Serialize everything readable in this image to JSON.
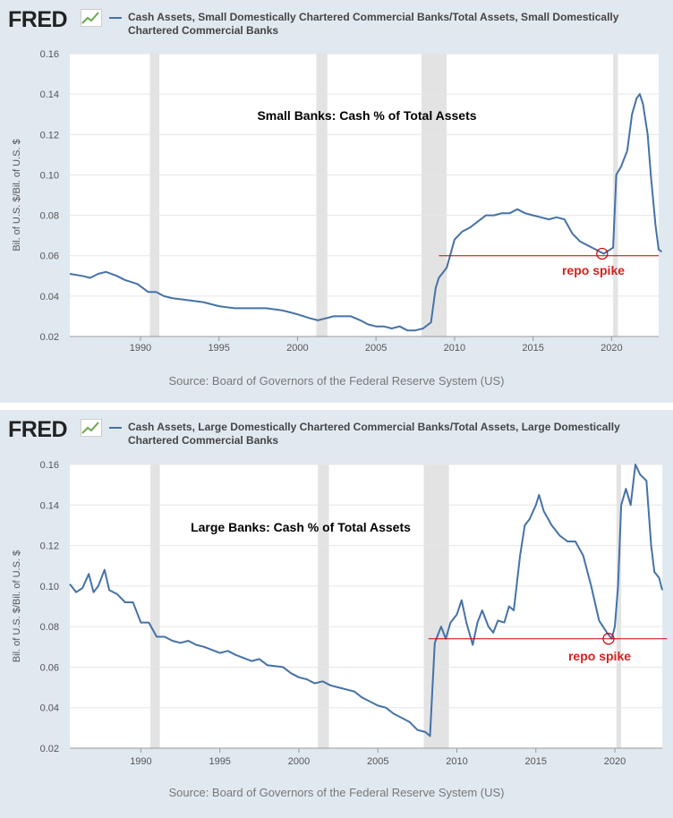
{
  "panels": [
    {
      "logo_text": "FRED",
      "legend": "Cash Assets, Small Domestically Chartered Commercial Banks/Total Assets, Small Domestically Chartered Commercial Banks",
      "source": "Source: Board of Governors of the Federal Reserve System (US)",
      "ylabel": "Bil. of U.S. $/Bil. of U.S. $",
      "annotation_title": "Small Banks: Cash % of Total Assets",
      "annotation_repo": "repo spike",
      "chart_data": {
        "type": "line",
        "xlim": [
          1985.5,
          2023.0
        ],
        "ylim": [
          0.02,
          0.16
        ],
        "yticks": [
          "0.02",
          "0.04",
          "0.06",
          "0.08",
          "0.10",
          "0.12",
          "0.14",
          "0.16"
        ],
        "xticks": [
          "1990",
          "1995",
          "2000",
          "2005",
          "2010",
          "2015",
          "2020"
        ],
        "xtick_values": [
          1990,
          1995,
          2000,
          2005,
          2010,
          2015,
          2020
        ],
        "recessions": [
          [
            1990.6,
            1991.2
          ],
          [
            2001.2,
            2001.9
          ],
          [
            2007.9,
            2009.5
          ],
          [
            2020.1,
            2020.4
          ]
        ],
        "reference_line": {
          "y": 0.06,
          "x_from": 2009.0,
          "x_to": 2023.0
        },
        "marker": {
          "x": 2019.4,
          "y": 0.061
        },
        "series": [
          {
            "color": "#4572a7",
            "points": [
              [
                1985.5,
                0.051
              ],
              [
                1986.3,
                0.05
              ],
              [
                1986.8,
                0.049
              ],
              [
                1987.3,
                0.051
              ],
              [
                1987.8,
                0.052
              ],
              [
                1988.5,
                0.05
              ],
              [
                1989.0,
                0.048
              ],
              [
                1989.8,
                0.046
              ],
              [
                1990.5,
                0.042
              ],
              [
                1991.0,
                0.042
              ],
              [
                1991.5,
                0.04
              ],
              [
                1992.0,
                0.039
              ],
              [
                1993.0,
                0.038
              ],
              [
                1994.0,
                0.037
              ],
              [
                1995.0,
                0.035
              ],
              [
                1996.0,
                0.034
              ],
              [
                1997.0,
                0.034
              ],
              [
                1998.0,
                0.034
              ],
              [
                1999.0,
                0.033
              ],
              [
                1999.5,
                0.032
              ],
              [
                2000.0,
                0.031
              ],
              [
                2000.8,
                0.029
              ],
              [
                2001.3,
                0.028
              ],
              [
                2001.8,
                0.029
              ],
              [
                2002.3,
                0.03
              ],
              [
                2002.8,
                0.03
              ],
              [
                2003.4,
                0.03
              ],
              [
                2004.0,
                0.028
              ],
              [
                2004.5,
                0.026
              ],
              [
                2005.0,
                0.025
              ],
              [
                2005.5,
                0.025
              ],
              [
                2006.0,
                0.024
              ],
              [
                2006.5,
                0.025
              ],
              [
                2007.0,
                0.023
              ],
              [
                2007.5,
                0.023
              ],
              [
                2008.0,
                0.024
              ],
              [
                2008.5,
                0.027
              ],
              [
                2008.8,
                0.044
              ],
              [
                2009.0,
                0.049
              ],
              [
                2009.5,
                0.054
              ],
              [
                2010.0,
                0.068
              ],
              [
                2010.5,
                0.072
              ],
              [
                2011.0,
                0.074
              ],
              [
                2011.5,
                0.077
              ],
              [
                2012.0,
                0.08
              ],
              [
                2012.5,
                0.08
              ],
              [
                2013.0,
                0.081
              ],
              [
                2013.5,
                0.081
              ],
              [
                2014.0,
                0.083
              ],
              [
                2014.5,
                0.081
              ],
              [
                2015.0,
                0.08
              ],
              [
                2015.5,
                0.079
              ],
              [
                2016.0,
                0.078
              ],
              [
                2016.5,
                0.079
              ],
              [
                2017.0,
                0.078
              ],
              [
                2017.5,
                0.071
              ],
              [
                2018.0,
                0.067
              ],
              [
                2018.5,
                0.065
              ],
              [
                2019.0,
                0.063
              ],
              [
                2019.5,
                0.061
              ],
              [
                2019.9,
                0.063
              ],
              [
                2020.1,
                0.064
              ],
              [
                2020.3,
                0.1
              ],
              [
                2020.6,
                0.104
              ],
              [
                2021.0,
                0.112
              ],
              [
                2021.3,
                0.13
              ],
              [
                2021.6,
                0.138
              ],
              [
                2021.8,
                0.14
              ],
              [
                2022.0,
                0.135
              ],
              [
                2022.3,
                0.12
              ],
              [
                2022.5,
                0.1
              ],
              [
                2022.8,
                0.075
              ],
              [
                2023.0,
                0.063
              ],
              [
                2023.2,
                0.062
              ]
            ]
          }
        ]
      }
    },
    {
      "logo_text": "FRED",
      "legend": "Cash Assets, Large Domestically Chartered Commercial Banks/Total Assets, Large Domestically Chartered Commercial Banks",
      "source": "Source: Board of Governors of the Federal Reserve System (US)",
      "ylabel": "Bil. of U.S. $/Bil. of U.S. $",
      "annotation_title": "Large Banks: Cash % of Total Assets",
      "annotation_repo": "repo spike",
      "chart_data": {
        "type": "line",
        "xlim": [
          1985.5,
          2023.0
        ],
        "ylim": [
          0.02,
          0.16
        ],
        "yticks": [
          "0.02",
          "0.04",
          "0.06",
          "0.08",
          "0.10",
          "0.12",
          "0.14",
          "0.16"
        ],
        "xticks": [
          "1990",
          "1995",
          "2000",
          "2005",
          "2010",
          "2015",
          "2020"
        ],
        "xtick_values": [
          1990,
          1995,
          2000,
          2005,
          2010,
          2015,
          2020
        ],
        "recessions": [
          [
            1990.6,
            1991.2
          ],
          [
            2001.2,
            2001.9
          ],
          [
            2007.9,
            2009.5
          ],
          [
            2020.1,
            2020.4
          ]
        ],
        "reference_line": {
          "y": 0.074,
          "x_from": 2008.2,
          "x_to": 2023.3
        },
        "marker": {
          "x": 2019.6,
          "y": 0.074
        },
        "series": [
          {
            "color": "#4572a7",
            "points": [
              [
                1985.5,
                0.101
              ],
              [
                1985.9,
                0.097
              ],
              [
                1986.3,
                0.099
              ],
              [
                1986.7,
                0.106
              ],
              [
                1987.0,
                0.097
              ],
              [
                1987.3,
                0.1
              ],
              [
                1987.7,
                0.108
              ],
              [
                1988.0,
                0.098
              ],
              [
                1988.5,
                0.096
              ],
              [
                1989.0,
                0.092
              ],
              [
                1989.5,
                0.092
              ],
              [
                1990.0,
                0.082
              ],
              [
                1990.5,
                0.082
              ],
              [
                1991.0,
                0.075
              ],
              [
                1991.5,
                0.075
              ],
              [
                1992.0,
                0.073
              ],
              [
                1992.5,
                0.072
              ],
              [
                1993.0,
                0.073
              ],
              [
                1993.5,
                0.071
              ],
              [
                1994.0,
                0.07
              ],
              [
                1995.0,
                0.067
              ],
              [
                1995.5,
                0.068
              ],
              [
                1996.0,
                0.066
              ],
              [
                1997.0,
                0.063
              ],
              [
                1997.5,
                0.064
              ],
              [
                1998.0,
                0.061
              ],
              [
                1999.0,
                0.06
              ],
              [
                1999.5,
                0.057
              ],
              [
                2000.0,
                0.055
              ],
              [
                2000.5,
                0.054
              ],
              [
                2001.0,
                0.052
              ],
              [
                2001.5,
                0.053
              ],
              [
                2002.0,
                0.051
              ],
              [
                2002.5,
                0.05
              ],
              [
                2003.0,
                0.049
              ],
              [
                2003.5,
                0.048
              ],
              [
                2004.0,
                0.045
              ],
              [
                2004.5,
                0.043
              ],
              [
                2005.0,
                0.041
              ],
              [
                2005.5,
                0.04
              ],
              [
                2006.0,
                0.037
              ],
              [
                2006.5,
                0.035
              ],
              [
                2007.0,
                0.033
              ],
              [
                2007.5,
                0.029
              ],
              [
                2008.0,
                0.028
              ],
              [
                2008.3,
                0.026
              ],
              [
                2008.6,
                0.072
              ],
              [
                2009.0,
                0.08
              ],
              [
                2009.3,
                0.074
              ],
              [
                2009.6,
                0.082
              ],
              [
                2010.0,
                0.086
              ],
              [
                2010.3,
                0.093
              ],
              [
                2010.6,
                0.082
              ],
              [
                2011.0,
                0.071
              ],
              [
                2011.3,
                0.082
              ],
              [
                2011.6,
                0.088
              ],
              [
                2012.0,
                0.08
              ],
              [
                2012.3,
                0.077
              ],
              [
                2012.6,
                0.083
              ],
              [
                2013.0,
                0.082
              ],
              [
                2013.3,
                0.09
              ],
              [
                2013.6,
                0.088
              ],
              [
                2014.0,
                0.115
              ],
              [
                2014.3,
                0.13
              ],
              [
                2014.6,
                0.133
              ],
              [
                2015.0,
                0.14
              ],
              [
                2015.2,
                0.145
              ],
              [
                2015.5,
                0.137
              ],
              [
                2016.0,
                0.13
              ],
              [
                2016.5,
                0.125
              ],
              [
                2017.0,
                0.122
              ],
              [
                2017.5,
                0.122
              ],
              [
                2018.0,
                0.115
              ],
              [
                2018.5,
                0.1
              ],
              [
                2019.0,
                0.083
              ],
              [
                2019.5,
                0.077
              ],
              [
                2019.8,
                0.074
              ],
              [
                2020.0,
                0.08
              ],
              [
                2020.2,
                0.1
              ],
              [
                2020.4,
                0.14
              ],
              [
                2020.7,
                0.148
              ],
              [
                2021.0,
                0.14
              ],
              [
                2021.3,
                0.16
              ],
              [
                2021.6,
                0.155
              ],
              [
                2022.0,
                0.152
              ],
              [
                2022.3,
                0.12
              ],
              [
                2022.5,
                0.107
              ],
              [
                2022.8,
                0.104
              ],
              [
                2023.0,
                0.098
              ]
            ]
          }
        ]
      }
    }
  ]
}
